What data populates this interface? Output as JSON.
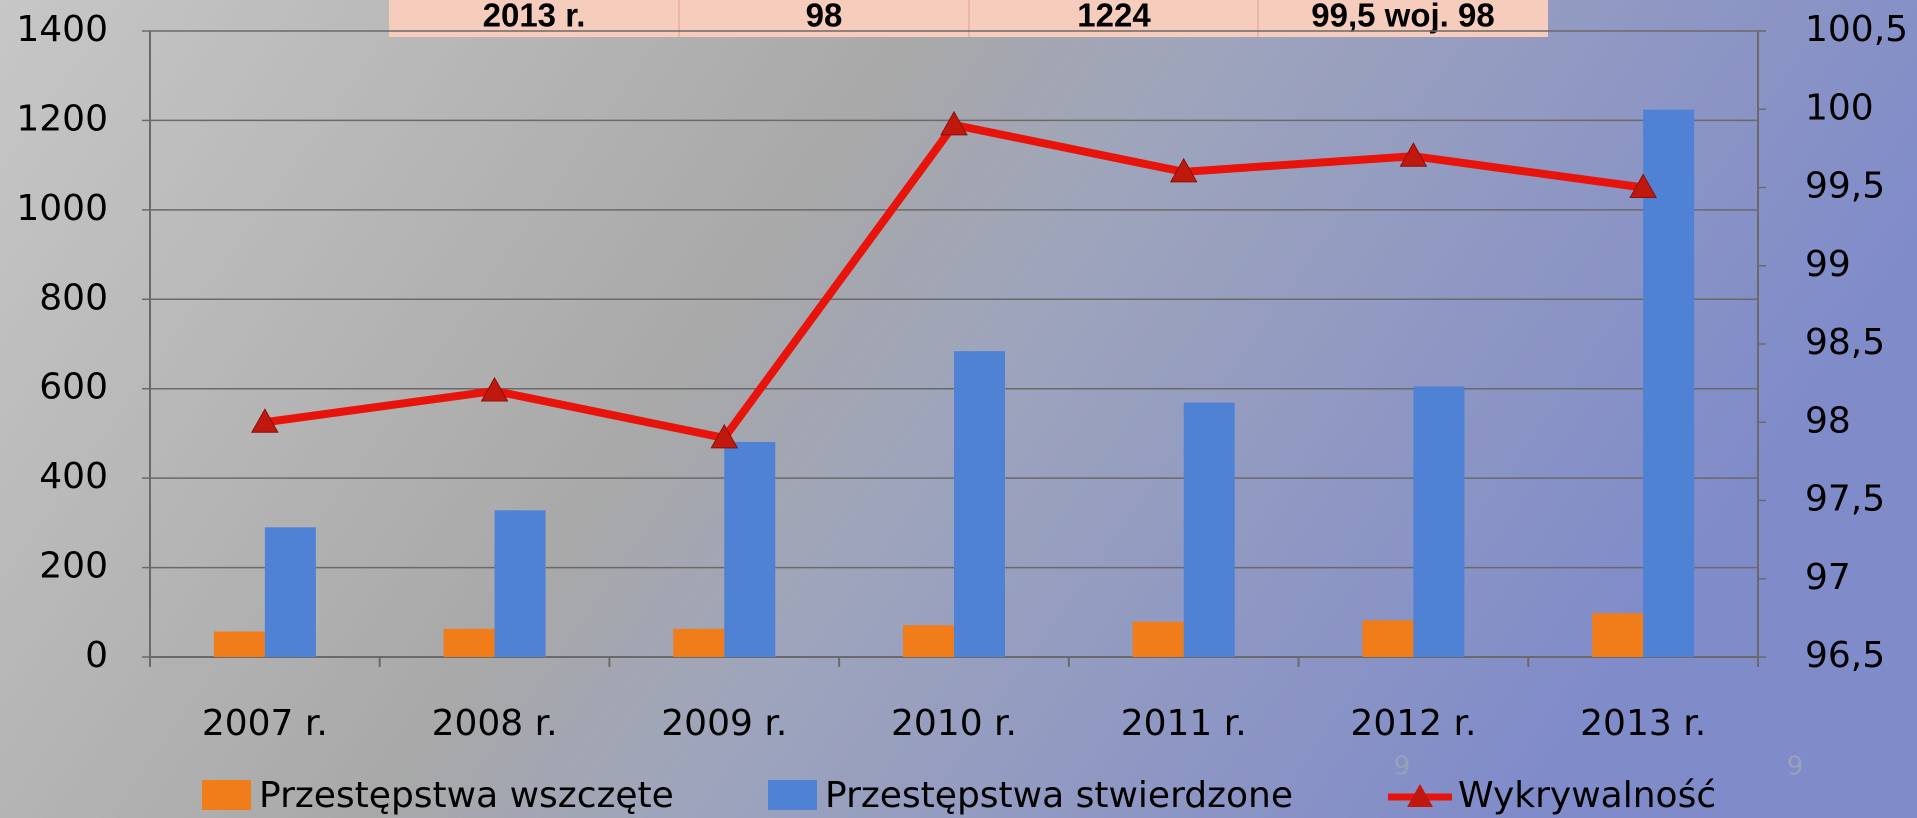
{
  "chart_data": {
    "type": "bar_line",
    "categories": [
      "2007 r.",
      "2008 r.",
      "2009 r.",
      "2010 r.",
      "2011 r.",
      "2012 r.",
      "2013 r."
    ],
    "series": [
      {
        "name": "Przestępstwa wszczęte",
        "type": "bar",
        "color": "#f07d1a",
        "values": [
          57,
          63,
          63,
          71,
          79,
          82,
          98
        ]
      },
      {
        "name": "Przestępstwa stwierdzone",
        "type": "bar",
        "color": "#4f81d4",
        "values": [
          290,
          328,
          481,
          684,
          569,
          605,
          1224
        ]
      },
      {
        "name": "Wykrywalność",
        "type": "line",
        "axis": "y2",
        "color": "#e8140c",
        "values": [
          98.0,
          98.2,
          97.9,
          99.9,
          99.6,
          99.7,
          99.5
        ]
      }
    ],
    "ylim": [
      0,
      1400
    ],
    "yticks": [
      0,
      200,
      400,
      600,
      800,
      1000,
      1200,
      1400
    ],
    "y2lim": [
      96.5,
      100.5
    ],
    "y2ticks": [
      {
        "value": 96.5,
        "label": "96,5"
      },
      97,
      {
        "value": 97.5,
        "label": "97,5"
      },
      98,
      {
        "value": 98.5,
        "label": "98,5"
      },
      99,
      {
        "value": 99.5,
        "label": "99,5"
      },
      100,
      {
        "value": 100.5,
        "label": "100,5"
      }
    ],
    "grid": true,
    "legend": "bottom"
  },
  "header_table": {
    "cells": [
      "2013 r.",
      "98",
      "1224",
      "99,5 woj. 98"
    ]
  },
  "page_numbers": [
    "9",
    "9"
  ]
}
